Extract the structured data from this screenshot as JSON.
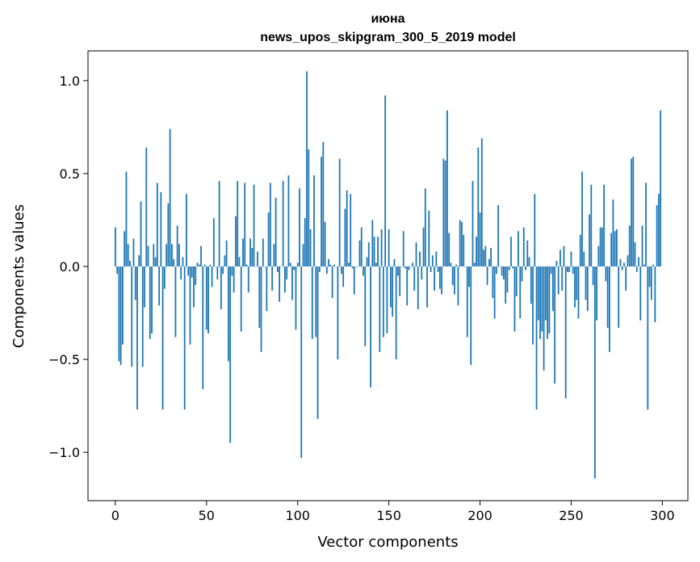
{
  "chart_data": {
    "type": "bar",
    "title_line1": "июна",
    "title_line2": "news_upos_skipgram_300_5_2019 model",
    "xlabel": "Vector components",
    "ylabel": "Components values",
    "xlim": [
      -15,
      314
    ],
    "ylim": [
      -1.26,
      1.16
    ],
    "xticks": [
      0,
      50,
      100,
      150,
      200,
      250,
      300
    ],
    "xtick_labels": [
      "0",
      "50",
      "100",
      "150",
      "200",
      "250",
      "300"
    ],
    "yticks": [
      -1.0,
      -0.5,
      0.0,
      0.5,
      1.0
    ],
    "ytick_labels": [
      "−1.0",
      "−0.5",
      "0.0",
      "0.5",
      "1.0"
    ],
    "bar_color": "#1f77b4",
    "bar_width": 0.8,
    "x": [
      0,
      1,
      2,
      3,
      4,
      5,
      6,
      7,
      8,
      9,
      10,
      11,
      12,
      13,
      14,
      15,
      16,
      17,
      18,
      19,
      20,
      21,
      22,
      23,
      24,
      25,
      26,
      27,
      28,
      29,
      30,
      31,
      32,
      33,
      34,
      35,
      36,
      37,
      38,
      39,
      40,
      41,
      42,
      43,
      44,
      45,
      46,
      47,
      48,
      49,
      50,
      51,
      52,
      53,
      54,
      55,
      56,
      57,
      58,
      59,
      60,
      61,
      62,
      63,
      64,
      65,
      66,
      67,
      68,
      69,
      70,
      71,
      72,
      73,
      74,
      75,
      76,
      77,
      78,
      79,
      80,
      81,
      82,
      83,
      84,
      85,
      86,
      87,
      88,
      89,
      90,
      91,
      92,
      93,
      94,
      95,
      96,
      97,
      98,
      99,
      100,
      101,
      102,
      103,
      104,
      105,
      106,
      107,
      108,
      109,
      110,
      111,
      112,
      113,
      114,
      115,
      116,
      117,
      118,
      119,
      120,
      121,
      122,
      123,
      124,
      125,
      126,
      127,
      128,
      129,
      130,
      131,
      132,
      133,
      134,
      135,
      136,
      137,
      138,
      139,
      140,
      141,
      142,
      143,
      144,
      145,
      146,
      147,
      148,
      149,
      150,
      151,
      152,
      153,
      154,
      155,
      156,
      157,
      158,
      159,
      160,
      161,
      162,
      163,
      164,
      165,
      166,
      167,
      168,
      169,
      170,
      171,
      172,
      173,
      174,
      175,
      176,
      177,
      178,
      179,
      180,
      181,
      182,
      183,
      184,
      185,
      186,
      187,
      188,
      189,
      190,
      191,
      192,
      193,
      194,
      195,
      196,
      197,
      198,
      199,
      200,
      201,
      202,
      203,
      204,
      205,
      206,
      207,
      208,
      209,
      210,
      211,
      212,
      213,
      214,
      215,
      216,
      217,
      218,
      219,
      220,
      221,
      222,
      223,
      224,
      225,
      226,
      227,
      228,
      229,
      230,
      231,
      232,
      233,
      234,
      235,
      236,
      237,
      238,
      239,
      240,
      241,
      242,
      243,
      244,
      245,
      246,
      247,
      248,
      249,
      250,
      251,
      252,
      253,
      254,
      255,
      256,
      257,
      258,
      259,
      260,
      261,
      262,
      263,
      264,
      265,
      266,
      267,
      268,
      269,
      270,
      271,
      272,
      273,
      274,
      275,
      276,
      277,
      278,
      279,
      280,
      281,
      282,
      283,
      284,
      285,
      286,
      287,
      288,
      289,
      290,
      291,
      292,
      293,
      294,
      295,
      296,
      297,
      298,
      299
    ],
    "values": [
      0.21,
      -0.04,
      -0.51,
      -0.53,
      -0.42,
      0.19,
      0.51,
      0.12,
      0.03,
      -0.54,
      0.15,
      -0.18,
      -0.77,
      0.06,
      0.35,
      -0.54,
      -0.22,
      0.64,
      0.11,
      -0.39,
      -0.36,
      0.12,
      0.05,
      0.45,
      -0.21,
      0.4,
      -0.77,
      -0.12,
      0.12,
      0.34,
      0.74,
      0.12,
      0.04,
      -0.38,
      0.22,
      0.12,
      -0.07,
      0.05,
      -0.77,
      0.39,
      -0.05,
      -0.42,
      -0.06,
      -0.22,
      -0.1,
      0.02,
      0.01,
      0.11,
      -0.66,
      0.01,
      -0.34,
      -0.36,
      0.01,
      -0.11,
      0.26,
      0.0,
      -0.07,
      0.46,
      -0.23,
      -0.04,
      0.06,
      0.14,
      -0.51,
      -0.95,
      -0.05,
      -0.14,
      0.27,
      0.46,
      0.05,
      -0.35,
      0.15,
      0.45,
      0.01,
      -0.14,
      0.15,
      0.1,
      0.44,
      0.0,
      0.08,
      -0.33,
      -0.46,
      0.15,
      0.0,
      -0.24,
      0.29,
      0.45,
      -0.13,
      0.12,
      0.37,
      -0.03,
      -0.19,
      0.0,
      0.46,
      -0.14,
      -0.07,
      0.49,
      0.02,
      -0.18,
      -0.02,
      -0.34,
      0.02,
      0.42,
      -1.03,
      0.12,
      0.26,
      1.05,
      0.63,
      0.2,
      -0.39,
      0.49,
      -0.38,
      -0.82,
      -0.03,
      0.59,
      0.67,
      0.24,
      -0.04,
      0.04,
      0.01,
      -0.17,
      0.01,
      0.0,
      -0.5,
      0.58,
      -0.04,
      -0.11,
      0.31,
      0.41,
      0.02,
      0.39,
      -0.01,
      -0.15,
      0.0,
      0.0,
      0.14,
      0.21,
      -0.05,
      -0.43,
      0.05,
      0.13,
      -0.65,
      0.25,
      0.16,
      0.02,
      0.16,
      -0.46,
      0.2,
      -0.38,
      0.92,
      -0.36,
      0.2,
      -0.22,
      -0.27,
      0.04,
      -0.5,
      -0.05,
      -0.16,
      0.0,
      0.19,
      -0.01,
      -0.21,
      -0.02,
      0.0,
      0.02,
      -0.13,
      0.13,
      -0.23,
      0.08,
      -0.07,
      0.21,
      0.42,
      -0.22,
      0.3,
      -0.03,
      0.06,
      -0.13,
      0.08,
      -0.03,
      -0.12,
      -0.15,
      0.58,
      0.57,
      0.84,
      0.18,
      0.02,
      -0.1,
      -0.15,
      0.01,
      -0.21,
      0.25,
      0.24,
      0.17,
      0.0,
      -0.38,
      -0.11,
      -0.53,
      0.46,
      0.02,
      0.16,
      0.64,
      0.29,
      0.69,
      0.09,
      0.11,
      -0.1,
      0.04,
      0.1,
      -0.17,
      -0.28,
      -0.04,
      0.33,
      0.0,
      -0.05,
      -0.07,
      -0.2,
      -0.14,
      -0.02,
      0.16,
      -0.01,
      -0.35,
      -0.16,
      0.19,
      -0.28,
      -0.08,
      0.21,
      -0.02,
      0.14,
      0.05,
      -0.2,
      -0.42,
      0.39,
      -0.77,
      -0.29,
      -0.39,
      -0.35,
      -0.56,
      -0.29,
      -0.39,
      -0.36,
      -0.04,
      -0.24,
      -0.63,
      0.03,
      -0.15,
      0.09,
      -0.13,
      0.11,
      -0.71,
      -0.03,
      -0.03,
      0.08,
      -0.04,
      -0.22,
      -0.18,
      -0.28,
      0.17,
      0.51,
      0.08,
      -0.18,
      -0.24,
      0.28,
      0.44,
      -0.1,
      -1.14,
      -0.29,
      0.11,
      0.21,
      0.21,
      0.44,
      -0.08,
      -0.33,
      -0.46,
      0.18,
      0.36,
      0.19,
      0.2,
      -0.33,
      0.04,
      -0.02,
      0.02,
      -0.13,
      0.06,
      0.22,
      0.58,
      0.59,
      0.13,
      -0.03,
      0.05,
      -0.29,
      0.22,
      0.01,
      0.45,
      -0.77,
      -0.11,
      -0.18,
      0.01,
      -0.3,
      0.33,
      0.39,
      0.84
    ]
  }
}
